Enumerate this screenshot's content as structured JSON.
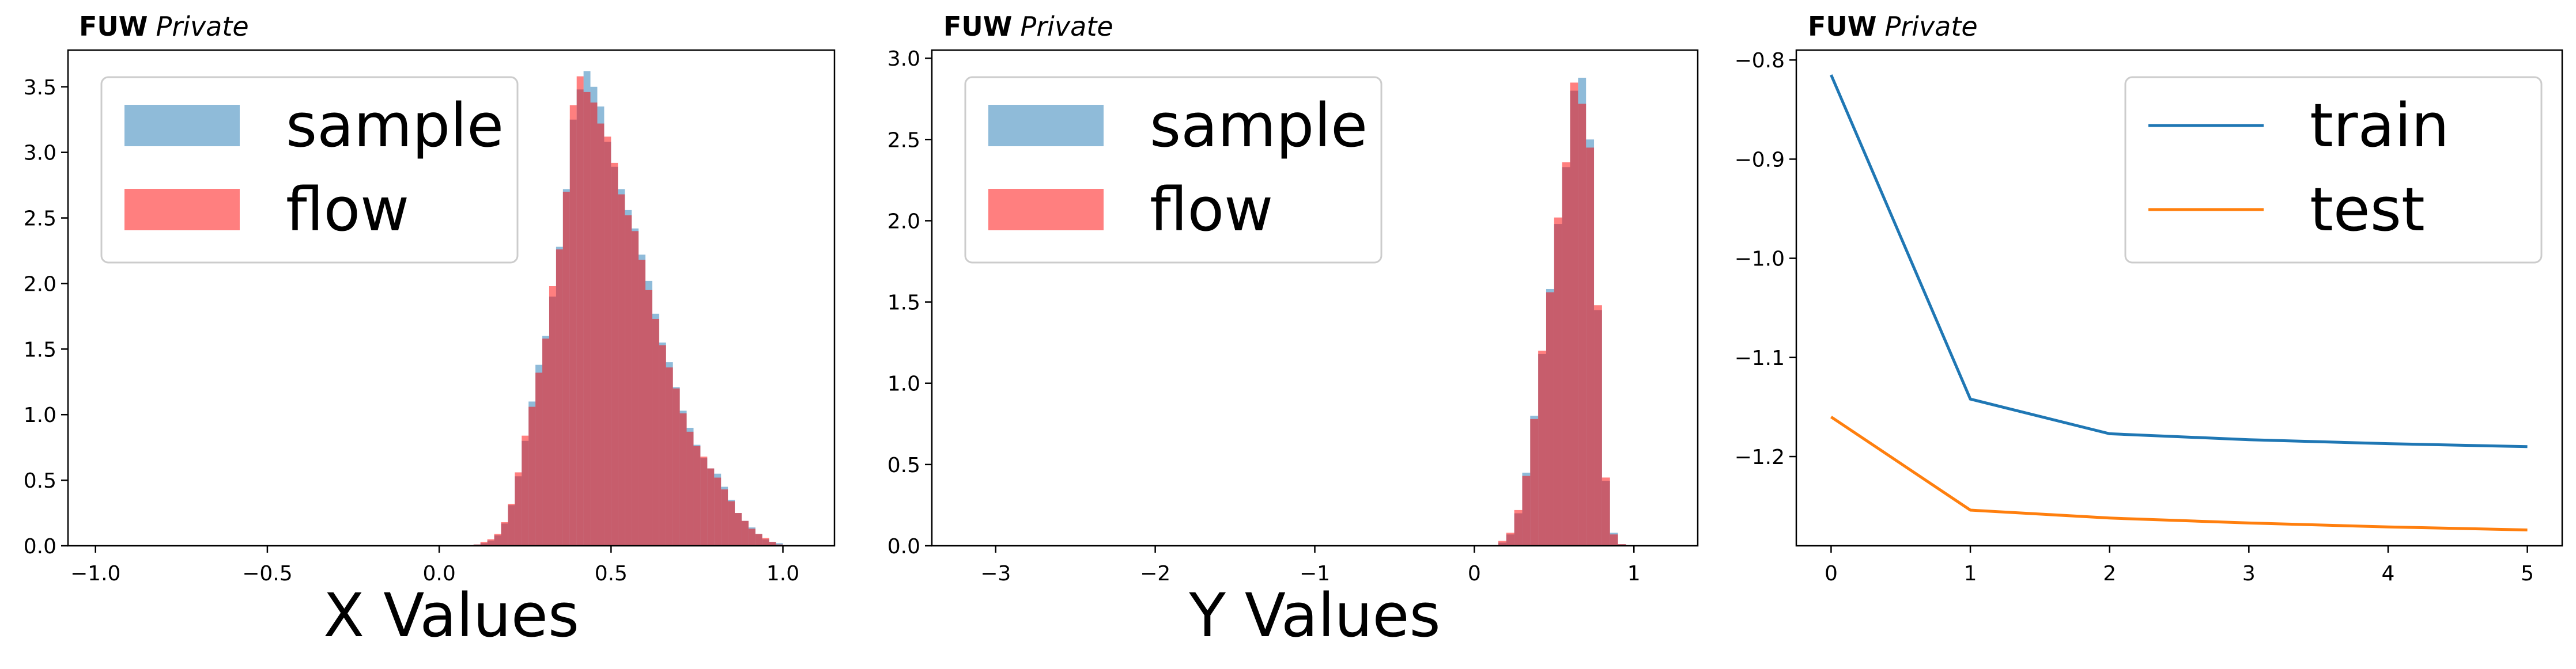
{
  "colors": {
    "sample": "#1f77b4",
    "flow": "#ff0000",
    "train": "#1f77b4",
    "test": "#ff7f0e",
    "axis": "#000000",
    "legend_border": "#cccccc"
  },
  "chart_data": [
    {
      "type": "bar",
      "subtype": "histogram",
      "header_bold": "FUW",
      "header_italic": "Private",
      "title": "",
      "xlabel": "X Values",
      "ylabel": "",
      "xlim": [
        -1.08,
        1.15
      ],
      "ylim": [
        0,
        3.78
      ],
      "xticks": [
        -1.0,
        -0.5,
        0.0,
        0.5,
        1.0
      ],
      "xtick_labels": [
        "−1.0",
        "−0.5",
        "0.0",
        "0.5",
        "1.0"
      ],
      "yticks": [
        0.0,
        0.5,
        1.0,
        1.5,
        2.0,
        2.5,
        3.0,
        3.5
      ],
      "ytick_labels": [
        "0.0",
        "0.5",
        "1.0",
        "1.5",
        "2.0",
        "2.5",
        "3.0",
        "3.5"
      ],
      "legend": {
        "position": "upper-left",
        "entries": [
          "sample",
          "flow"
        ]
      },
      "bin_start": 0.1,
      "bin_width": 0.02,
      "series": [
        {
          "name": "sample",
          "values": [
            0.01,
            0.02,
            0.04,
            0.08,
            0.17,
            0.31,
            0.53,
            0.8,
            1.1,
            1.38,
            1.6,
            1.9,
            2.28,
            2.72,
            3.25,
            3.48,
            3.62,
            3.5,
            3.35,
            3.08,
            2.89,
            2.72,
            2.56,
            2.42,
            2.22,
            2.02,
            1.77,
            1.55,
            1.4,
            1.21,
            1.03,
            0.9,
            0.77,
            0.67,
            0.59,
            0.55,
            0.45,
            0.35,
            0.25,
            0.19,
            0.14,
            0.09,
            0.05,
            0.03,
            0.02
          ]
        },
        {
          "name": "flow",
          "values": [
            0.01,
            0.03,
            0.05,
            0.09,
            0.18,
            0.32,
            0.56,
            0.84,
            1.06,
            1.32,
            1.58,
            1.98,
            2.26,
            2.7,
            3.36,
            3.58,
            3.46,
            3.38,
            3.22,
            3.12,
            2.92,
            2.68,
            2.52,
            2.4,
            2.18,
            1.95,
            1.73,
            1.53,
            1.36,
            1.2,
            1.01,
            0.87,
            0.76,
            0.68,
            0.59,
            0.52,
            0.43,
            0.34,
            0.25,
            0.19,
            0.13,
            0.09,
            0.06,
            0.03,
            0.01
          ]
        }
      ]
    },
    {
      "type": "bar",
      "subtype": "histogram",
      "header_bold": "FUW",
      "header_italic": "Private",
      "title": "",
      "xlabel": "Y Values",
      "ylabel": "",
      "xlim": [
        -3.4,
        1.4
      ],
      "ylim": [
        0,
        3.05
      ],
      "xticks": [
        -3,
        -2,
        -1,
        0,
        1
      ],
      "xtick_labels": [
        "−3",
        "−2",
        "−1",
        "0",
        "1"
      ],
      "yticks": [
        0.0,
        0.5,
        1.0,
        1.5,
        2.0,
        2.5,
        3.0
      ],
      "ytick_labels": [
        "0.0",
        "0.5",
        "1.0",
        "1.5",
        "2.0",
        "2.5",
        "3.0"
      ],
      "legend": {
        "position": "upper-left",
        "entries": [
          "sample",
          "flow"
        ]
      },
      "bin_start": 0.15,
      "bin_width": 0.05,
      "series": [
        {
          "name": "sample",
          "values": [
            0.02,
            0.07,
            0.2,
            0.45,
            0.8,
            1.18,
            1.58,
            1.98,
            2.33,
            2.8,
            2.88,
            2.5,
            1.45,
            0.4,
            0.08,
            0.01
          ]
        },
        {
          "name": "flow",
          "values": [
            0.03,
            0.08,
            0.22,
            0.43,
            0.78,
            1.2,
            1.56,
            2.02,
            2.36,
            2.85,
            2.72,
            2.45,
            1.48,
            0.42,
            0.07,
            0.01
          ]
        }
      ]
    },
    {
      "type": "line",
      "header_bold": "FUW",
      "header_italic": "Private",
      "title": "",
      "xlabel": "",
      "ylabel": "",
      "xlim": [
        -0.25,
        5.25
      ],
      "ylim": [
        -1.29,
        -0.79
      ],
      "xticks": [
        0,
        1,
        2,
        3,
        4,
        5
      ],
      "xtick_labels": [
        "0",
        "1",
        "2",
        "3",
        "4",
        "5"
      ],
      "yticks": [
        -0.8,
        -0.9,
        -1.0,
        -1.1,
        -1.2
      ],
      "ytick_labels": [
        "−0.8",
        "−0.9",
        "−1.0",
        "−1.1",
        "−1.2"
      ],
      "legend": {
        "position": "upper-right",
        "entries": [
          "train",
          "test"
        ]
      },
      "x": [
        0,
        1,
        2,
        3,
        4,
        5
      ],
      "series": [
        {
          "name": "train",
          "values": [
            -0.815,
            -1.142,
            -1.177,
            -1.183,
            -1.187,
            -1.19
          ]
        },
        {
          "name": "test",
          "values": [
            -1.16,
            -1.254,
            -1.262,
            -1.267,
            -1.271,
            -1.274
          ]
        }
      ]
    }
  ]
}
